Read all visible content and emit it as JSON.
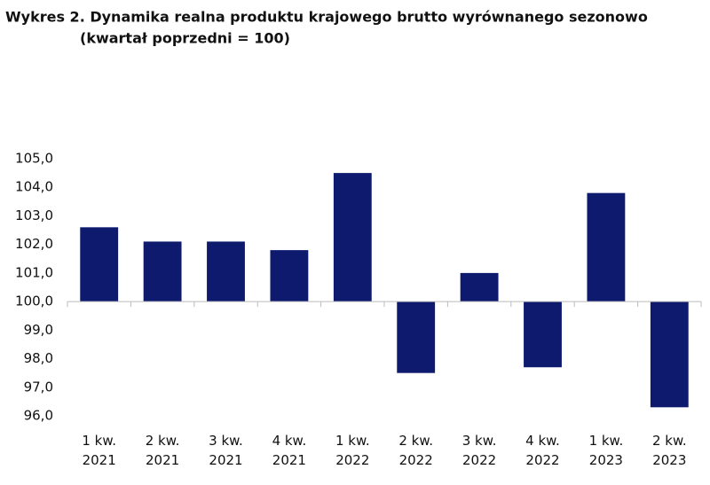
{
  "chart_data": {
    "type": "bar",
    "title": "Wykres 2. Dynamika realna produktu krajowego brutto wyrównanego sezonowo",
    "subtitle": "(kwartał poprzedni = 100)",
    "categories": [
      "1 kw. 2021",
      "2 kw. 2021",
      "3 kw. 2021",
      "4 kw. 2021",
      "1 kw. 2022",
      "2 kw. 2022",
      "3 kw. 2022",
      "4 kw. 2022",
      "1 kw. 2023",
      "2 kw. 2023"
    ],
    "values": [
      102.6,
      102.1,
      102.1,
      101.8,
      104.5,
      97.5,
      101.0,
      97.7,
      103.8,
      96.3
    ],
    "color": "#0d1a6e",
    "baseline": 100,
    "ylim": [
      96,
      105
    ],
    "yticks": [
      {
        "value": 96,
        "label": "96,0"
      },
      {
        "value": 97,
        "label": "97,0"
      },
      {
        "value": 98,
        "label": "98,0"
      },
      {
        "value": 99,
        "label": "99,0"
      },
      {
        "value": 100,
        "label": "100,0"
      },
      {
        "value": 101,
        "label": "101,0"
      },
      {
        "value": 102,
        "label": "102,0"
      },
      {
        "value": 103,
        "label": "103,0"
      },
      {
        "value": 104,
        "label": "104,0"
      },
      {
        "value": 105,
        "label": "105,0"
      }
    ],
    "grid": false
  }
}
